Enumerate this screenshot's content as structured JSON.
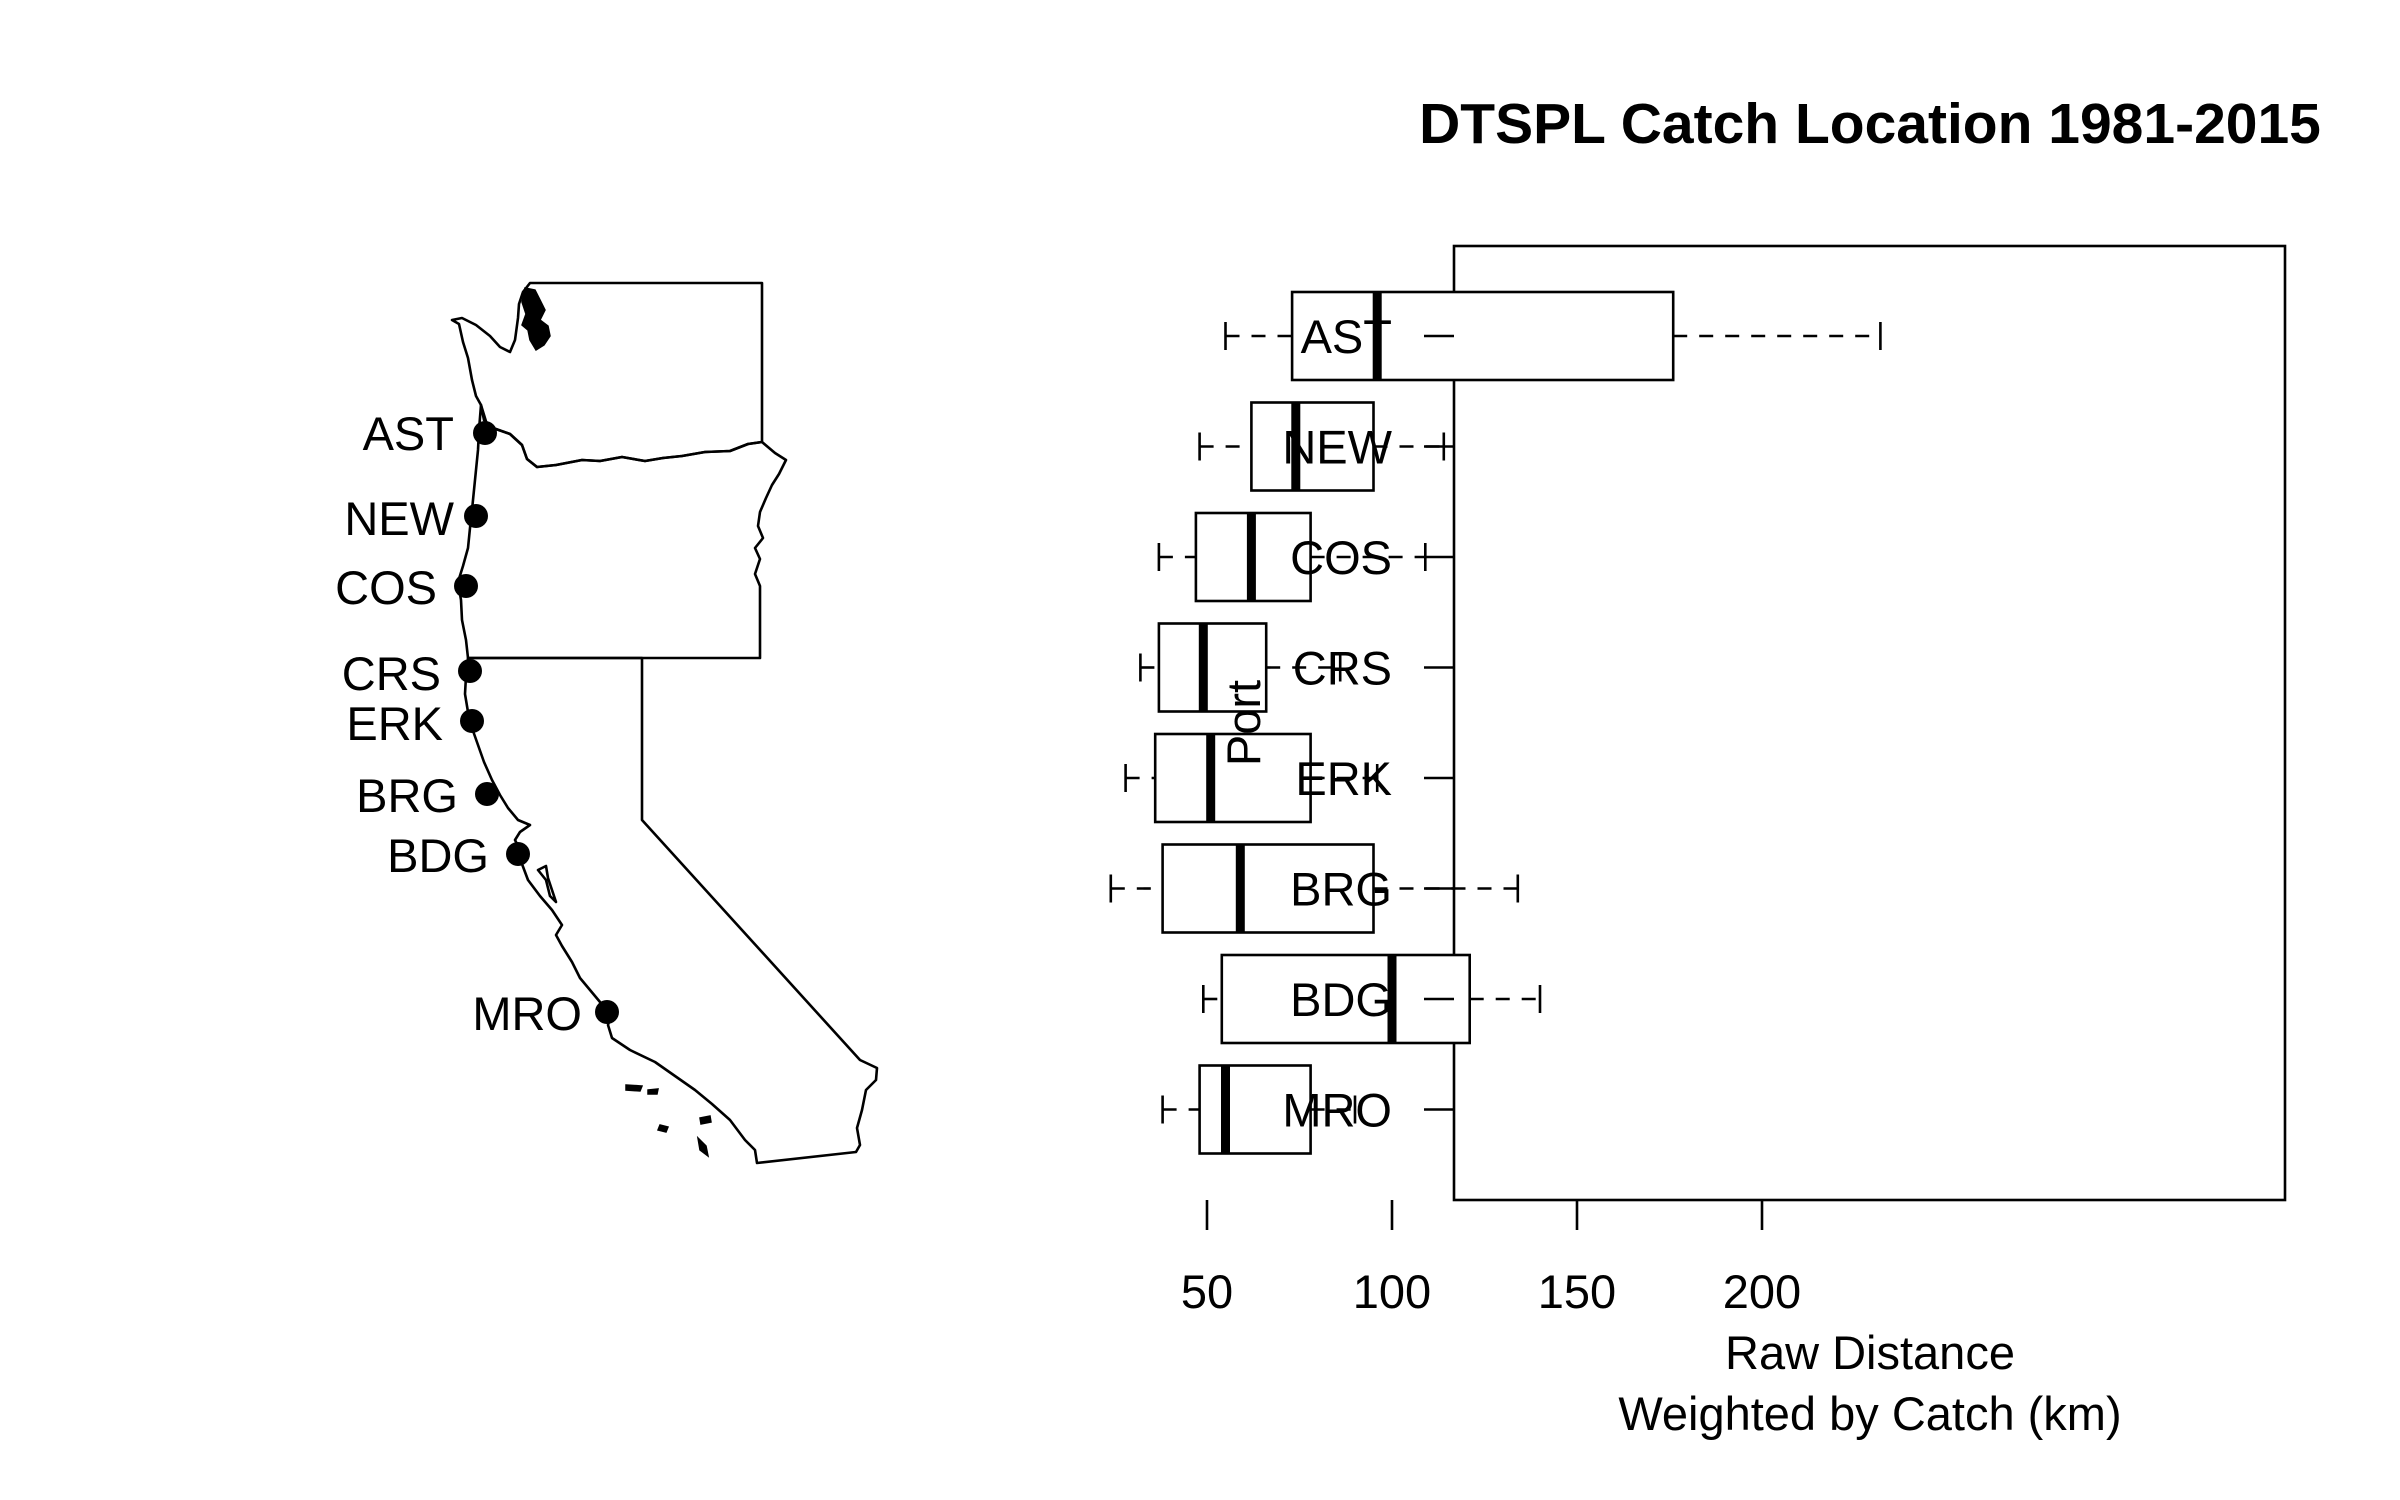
{
  "chart_data": {
    "type": "box",
    "title": "DTSPL Catch Location 1981-2015",
    "xlabel_line1": "Raw Distance",
    "xlabel_line2": "Weighted by Catch (km)",
    "ylabel": "Port",
    "xlim": [
      15,
      240
    ],
    "xticks": [
      50,
      100,
      150,
      200
    ],
    "orientation": "horizontal",
    "categories": [
      "AST",
      "NEW",
      "COS",
      "CRS",
      "ERK",
      "BRG",
      "BDG",
      "MRO"
    ],
    "boxes": [
      {
        "port": "AST",
        "whisker_low": 55,
        "q1": 73,
        "median": 96,
        "q3": 176,
        "whisker_high": 232
      },
      {
        "port": "NEW",
        "whisker_low": 48,
        "q1": 62,
        "median": 74,
        "q3": 95,
        "whisker_high": 114
      },
      {
        "port": "COS",
        "whisker_low": 37,
        "q1": 47,
        "median": 62,
        "q3": 78,
        "whisker_high": 109
      },
      {
        "port": "CRS",
        "whisker_low": 32,
        "q1": 37,
        "median": 49,
        "q3": 66,
        "whisker_high": 86
      },
      {
        "port": "ERK",
        "whisker_low": 28,
        "q1": 36,
        "median": 51,
        "q3": 78,
        "whisker_high": 96
      },
      {
        "port": "BRG",
        "whisker_low": 24,
        "q1": 38,
        "median": 59,
        "q3": 95,
        "whisker_high": 134
      },
      {
        "port": "BDG",
        "whisker_low": 49,
        "q1": 54,
        "median": 100,
        "q3": 121,
        "whisker_high": 140
      },
      {
        "port": "MRO",
        "whisker_low": 38,
        "q1": 48,
        "median": 55,
        "q3": 78,
        "whisker_high": 90
      }
    ]
  },
  "map": {
    "ports": [
      "AST",
      "NEW",
      "COS",
      "CRS",
      "ERK",
      "BRG",
      "BDG",
      "MRO"
    ]
  }
}
